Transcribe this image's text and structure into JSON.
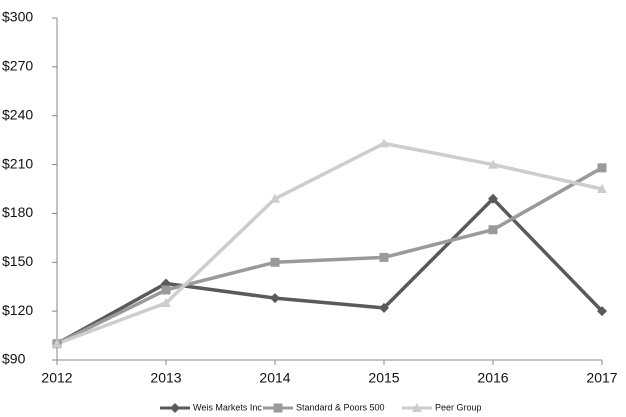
{
  "chart_data": {
    "type": "line",
    "categories": [
      "2012",
      "2013",
      "2014",
      "2015",
      "2016",
      "2017"
    ],
    "series": [
      {
        "name": "Weis Markets Inc",
        "color": "#5a5a5a",
        "marker": "diamond",
        "values": [
          100,
          137,
          128,
          122,
          189,
          120
        ]
      },
      {
        "name": "Standard & Poors 500",
        "color": "#9a9a9a",
        "marker": "square",
        "values": [
          100,
          133,
          150,
          153,
          170,
          208
        ]
      },
      {
        "name": "Peer Group",
        "color": "#cdcdcd",
        "marker": "triangle",
        "values": [
          100,
          125,
          189,
          223,
          210,
          195
        ]
      }
    ],
    "ylim": [
      90,
      300
    ],
    "yticks": [
      {
        "value": 90,
        "label": "$90"
      },
      {
        "value": 120,
        "label": "$120"
      },
      {
        "value": 150,
        "label": "$150"
      },
      {
        "value": 180,
        "label": "$180"
      },
      {
        "value": 210,
        "label": "$210"
      },
      {
        "value": 240,
        "label": "$240"
      },
      {
        "value": 270,
        "label": "$270"
      },
      {
        "value": 300,
        "label": "$300"
      }
    ],
    "grid": false,
    "legend": "bottom"
  }
}
